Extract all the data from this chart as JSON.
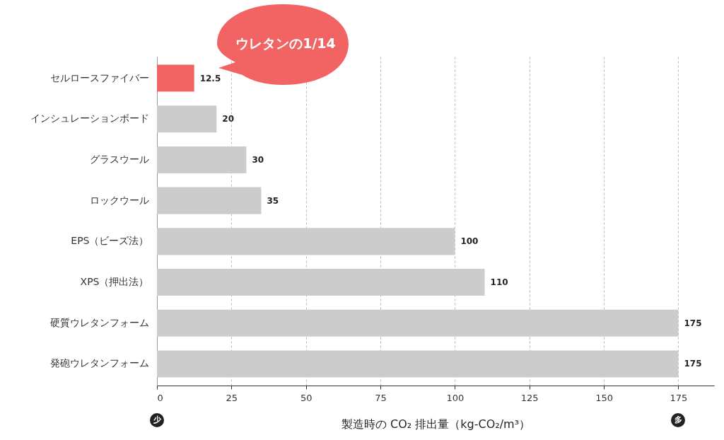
{
  "chart_data": {
    "type": "bar",
    "orientation": "horizontal",
    "xlabel": "製造時の CO₂ 排出量（kg-CO₂/m³）",
    "categories": [
      "セルロースファイバー",
      "インシュレーションボード",
      "グラスウール",
      "ロックウール",
      "EPS（ビーズ法）",
      "XPS（押出法）",
      "硬質ウレタンフォーム",
      "発砲ウレタンフォーム"
    ],
    "values": [
      12.5,
      20,
      30,
      35,
      100,
      110,
      175,
      175
    ],
    "colors": [
      "#f26464",
      "#cccccc",
      "#cccccc",
      "#cccccc",
      "#cccccc",
      "#cccccc",
      "#cccccc",
      "#cccccc"
    ],
    "xlim": [
      0,
      187
    ],
    "xticks": [
      0,
      25,
      50,
      75,
      100,
      125,
      150,
      175
    ],
    "grid": "x",
    "data_labels": true,
    "annotations": [
      "ウレタンの1/14",
      "少",
      "多"
    ]
  }
}
